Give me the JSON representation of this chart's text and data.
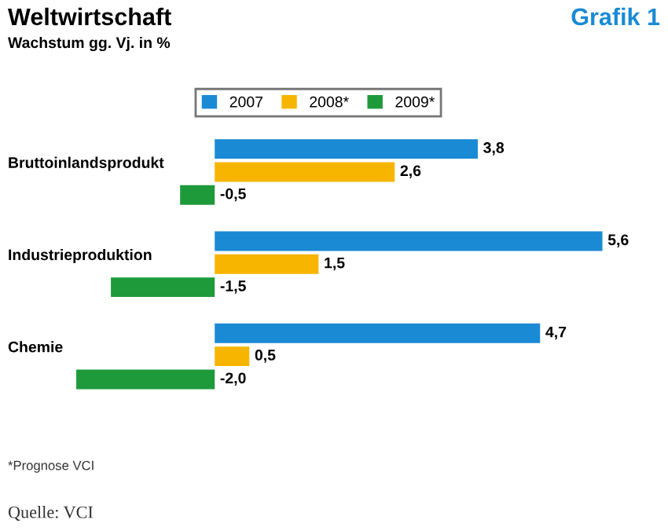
{
  "chart_data": {
    "type": "bar",
    "orientation": "horizontal",
    "title": "Weltwirtschaft",
    "subtitle": "Wachstum gg. Vj. in %",
    "categories": [
      "Bruttoinlandsprodukt",
      "Industrieproduktion",
      "Chemie"
    ],
    "series": [
      {
        "name": "2007",
        "color": "#1a8ad4",
        "values": [
          3.8,
          5.6,
          4.7
        ],
        "value_labels": [
          "3,8",
          "5,6",
          "4,7"
        ]
      },
      {
        "name": "2008*",
        "color": "#f7b500",
        "values": [
          2.6,
          1.5,
          0.5
        ],
        "value_labels": [
          "2,6",
          "1,5",
          "0,5"
        ]
      },
      {
        "name": "2009*",
        "color": "#1e9a3a",
        "values": [
          -0.5,
          -1.5,
          -2.0
        ],
        "value_labels": [
          "-0,5",
          "-1,5",
          "-2,0"
        ]
      }
    ],
    "annotations": [
      "Grafik 1",
      "*Prognose VCI",
      "Quelle: VCI"
    ],
    "legend": "top"
  }
}
